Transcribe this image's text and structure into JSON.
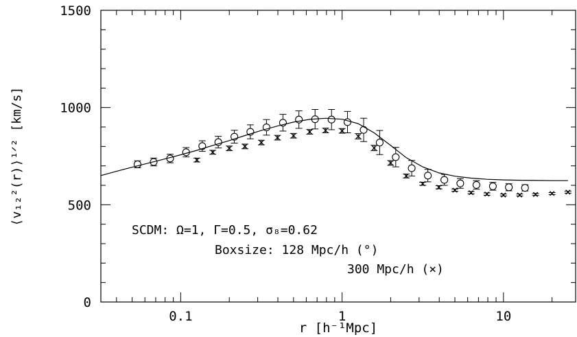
{
  "chart_data": {
    "type": "scatter",
    "xlabel": "r [h⁻¹Mpc]",
    "ylabel": "⟨v₁₂²(r)⟩¹ᐟ² [km/s]",
    "xscale": "log",
    "xlim": [
      0.032,
      28
    ],
    "ylim": [
      0,
      1500
    ],
    "x_ticks": [
      {
        "value": 0.1,
        "label": "0.1"
      },
      {
        "value": 1,
        "label": "1"
      },
      {
        "value": 10,
        "label": "10"
      }
    ],
    "y_ticks": [
      {
        "value": 0,
        "label": "0"
      },
      {
        "value": 500,
        "label": "500"
      },
      {
        "value": 1000,
        "label": "1000"
      },
      {
        "value": 1500,
        "label": "1500"
      }
    ],
    "grid": false,
    "annotations": [
      "SCDM: Ω=1, Γ=0.5, σ₈=0.62",
      "Boxsize: 128 Mpc/h (°)",
      "300 Mpc/h (×)"
    ],
    "series": [
      {
        "marker": "circle",
        "x": [
          0.054,
          0.068,
          0.086,
          0.108,
          0.136,
          0.171,
          0.215,
          0.27,
          0.34,
          0.43,
          0.54,
          0.68,
          0.86,
          1.08,
          1.36,
          1.71,
          2.15,
          2.7,
          3.4,
          4.3,
          5.4,
          6.8,
          8.6,
          10.8,
          13.6
        ],
        "y": [
          708,
          720,
          738,
          770,
          802,
          822,
          850,
          875,
          898,
          922,
          938,
          940,
          938,
          925,
          885,
          820,
          745,
          688,
          650,
          628,
          610,
          602,
          595,
          590,
          587
        ],
        "err": [
          18,
          20,
          22,
          24,
          27,
          30,
          33,
          36,
          40,
          43,
          45,
          50,
          52,
          55,
          60,
          62,
          50,
          40,
          32,
          28,
          25,
          22,
          20,
          18,
          16
        ]
      },
      {
        "marker": "cross",
        "x": [
          0.126,
          0.158,
          0.2,
          0.25,
          0.316,
          0.398,
          0.5,
          0.63,
          0.79,
          1.0,
          1.26,
          1.58,
          2.0,
          2.5,
          3.16,
          3.98,
          5.0,
          6.3,
          7.9,
          10.0,
          12.6,
          15.8,
          20.0,
          25.1
        ],
        "y": [
          730,
          770,
          790,
          800,
          820,
          845,
          855,
          875,
          882,
          880,
          852,
          792,
          715,
          648,
          608,
          590,
          575,
          562,
          555,
          550,
          550,
          553,
          558,
          565
        ],
        "err": [
          10,
          10,
          12,
          12,
          12,
          12,
          12,
          12,
          12,
          12,
          14,
          14,
          12,
          10,
          8,
          8,
          6,
          6,
          6,
          5,
          5,
          5,
          5,
          5
        ]
      },
      {
        "line": true,
        "x": [
          0.032,
          0.04,
          0.05,
          0.063,
          0.079,
          0.1,
          0.126,
          0.158,
          0.2,
          0.25,
          0.316,
          0.398,
          0.5,
          0.63,
          0.79,
          1.0,
          1.26,
          1.58,
          2.0,
          2.5,
          3.16,
          3.98,
          5.0,
          6.3,
          7.9,
          10.0,
          12.6,
          15.8,
          20.0,
          25.1
        ],
        "y": [
          650,
          672,
          693,
          714,
          735,
          757,
          780,
          805,
          830,
          856,
          882,
          905,
          925,
          939,
          945,
          940,
          917,
          870,
          805,
          742,
          695,
          664,
          647,
          637,
          631,
          628,
          626,
          625,
          624,
          624
        ]
      }
    ]
  }
}
